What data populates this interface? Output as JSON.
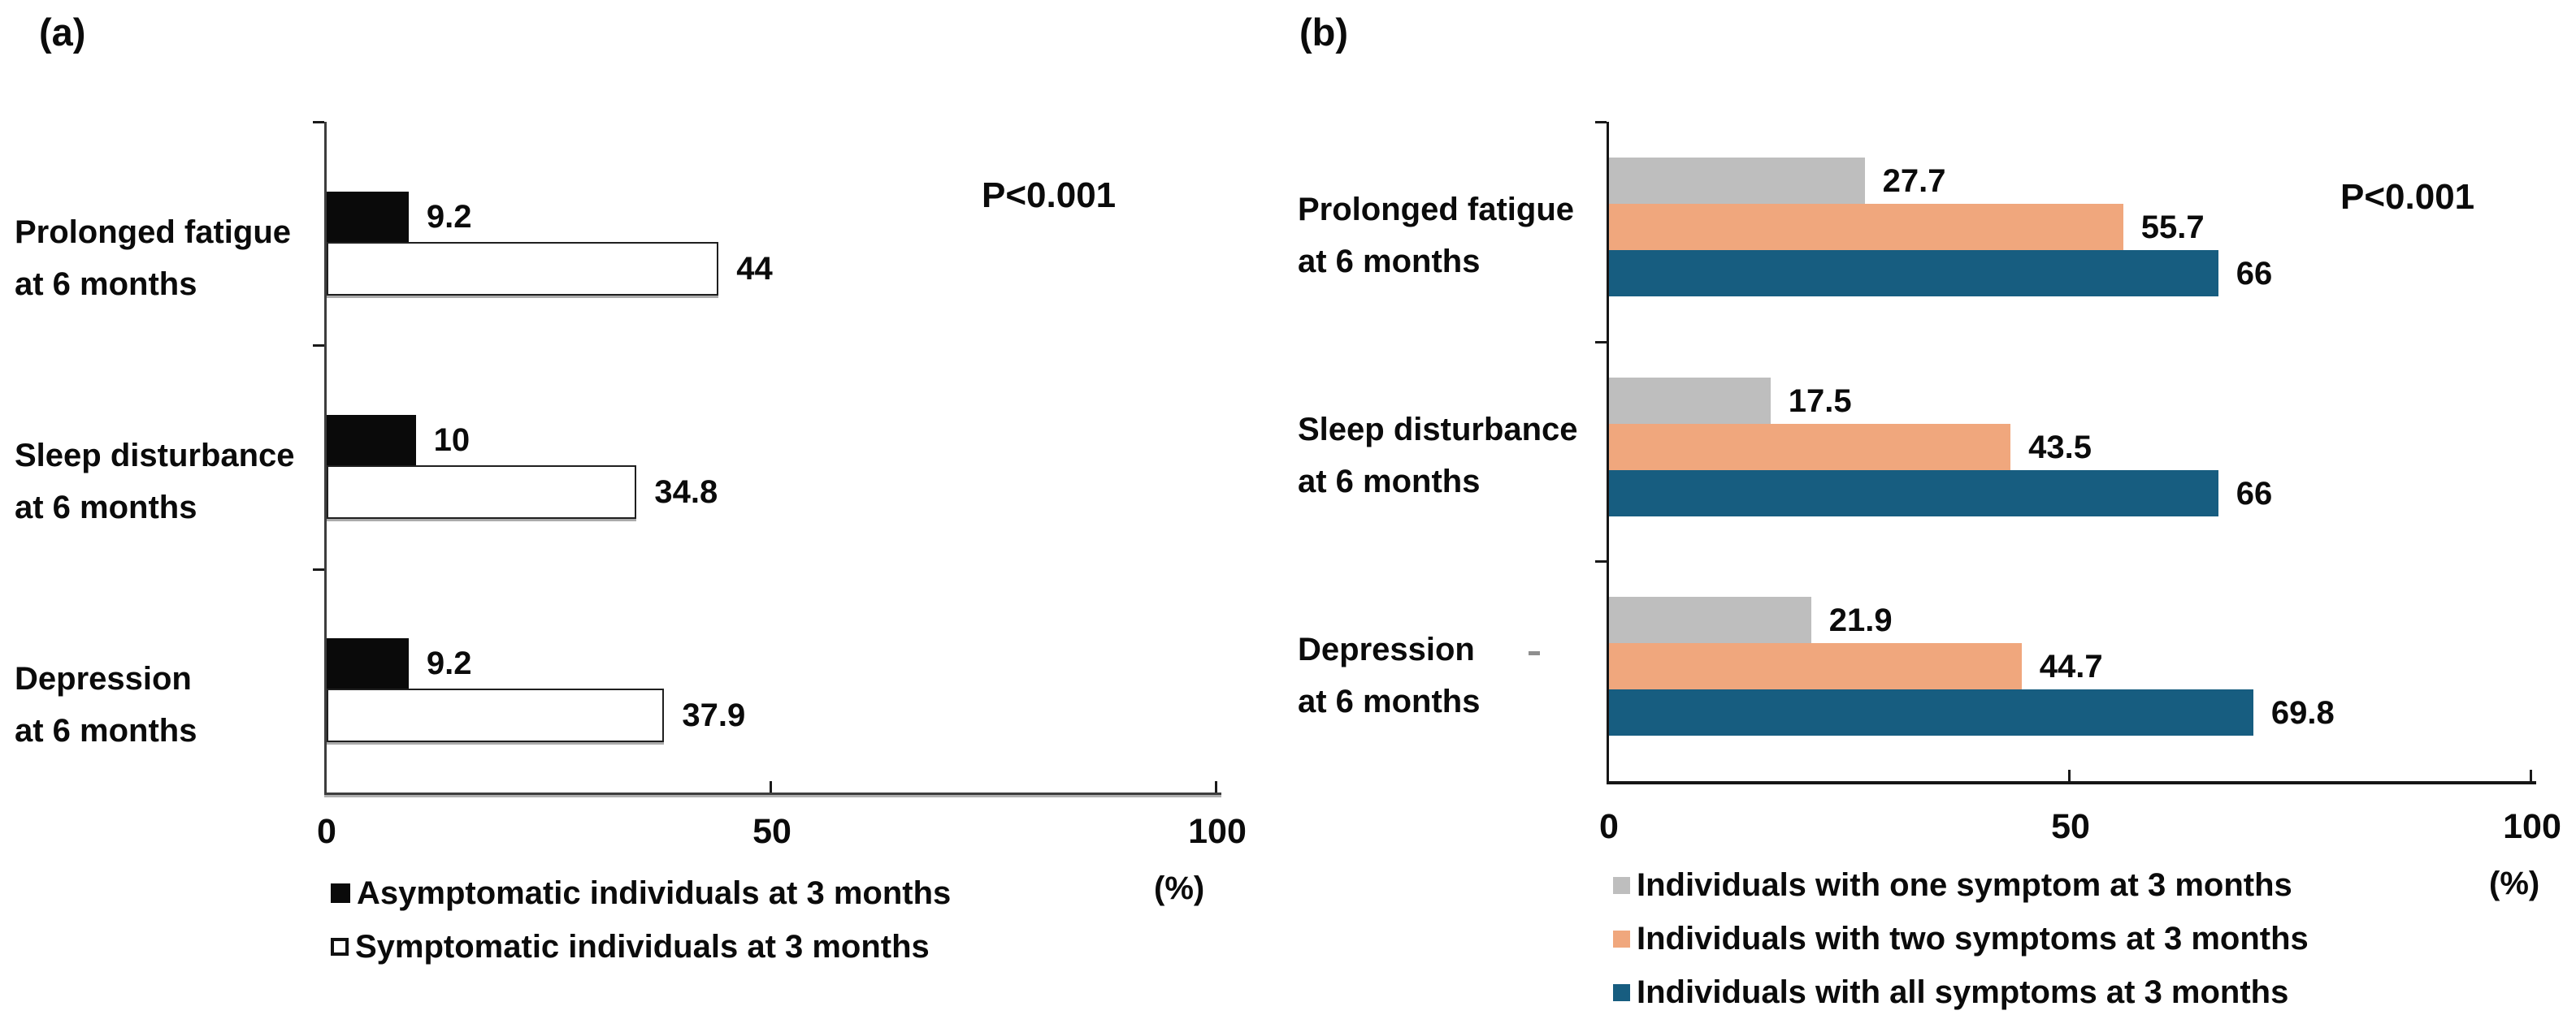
{
  "figure": {
    "background_color": "#FFFFFF",
    "text_color": "#0B0B0B"
  },
  "chart_data": [
    {
      "type": "bar",
      "orientation": "horizontal",
      "panel": "(a)",
      "annotation": "P<0.001",
      "categories": [
        "Prolonged fatigue at 6 months",
        "Sleep disturbance at 6 months",
        "Depression at 6 months"
      ],
      "category_label_lines": [
        [
          "Prolonged fatigue",
          "at 6 months"
        ],
        [
          "Sleep disturbance",
          "at 6 months"
        ],
        [
          "Depression",
          "at 6 months"
        ]
      ],
      "series": [
        {
          "name": "Asymptomatic individuals at 3 months",
          "color": "#0A0A0A",
          "swatch": "filled-black",
          "values": [
            9.2,
            10,
            9.2
          ],
          "value_labels": [
            "9.2",
            "10",
            "9.2"
          ]
        },
        {
          "name": "Symptomatic individuals at 3 months",
          "color": "#FFFFFF",
          "swatch": "open-white",
          "border_color": "#1F1F1F",
          "values": [
            44,
            34.8,
            37.9
          ],
          "value_labels": [
            "44",
            "34.8",
            "37.9"
          ]
        }
      ],
      "xlim": [
        0,
        100
      ],
      "x_tick_labels": [
        "0",
        "50",
        "100"
      ],
      "x_unit": "(%)",
      "grid": false,
      "legend_position": "bottom-left"
    },
    {
      "type": "bar",
      "orientation": "horizontal",
      "panel": "(b)",
      "annotation": "P<0.001",
      "categories": [
        "Prolonged fatigue at 6 months",
        "Sleep disturbance at 6 months",
        "Depression at 6 months"
      ],
      "category_label_lines": [
        [
          "Prolonged fatigue",
          "at 6 months"
        ],
        [
          "Sleep disturbance",
          "at 6 months"
        ],
        [
          "Depression",
          "at 6 months"
        ]
      ],
      "series": [
        {
          "name": "Individuals with one symptom at 3 months",
          "color": "#BEBEBE",
          "swatch": "gray",
          "values": [
            27.7,
            17.5,
            21.9
          ],
          "value_labels": [
            "27.7",
            "17.5",
            "21.9"
          ]
        },
        {
          "name": "Individuals with two symptoms at 3 months",
          "color": "#F0A77D",
          "swatch": "orange",
          "values": [
            55.7,
            43.5,
            44.7
          ],
          "value_labels": [
            "55.7",
            "43.5",
            "44.7"
          ]
        },
        {
          "name": "Individuals with all symptoms at 3 months",
          "color": "#175D80",
          "swatch": "blue",
          "values": [
            66,
            66,
            69.8
          ],
          "value_labels": [
            "66",
            "66",
            "69.8"
          ]
        }
      ],
      "xlim": [
        0,
        100
      ],
      "x_tick_labels": [
        "0",
        "50",
        "100"
      ],
      "x_unit": "(%)",
      "grid": false,
      "legend_position": "bottom-left"
    }
  ]
}
